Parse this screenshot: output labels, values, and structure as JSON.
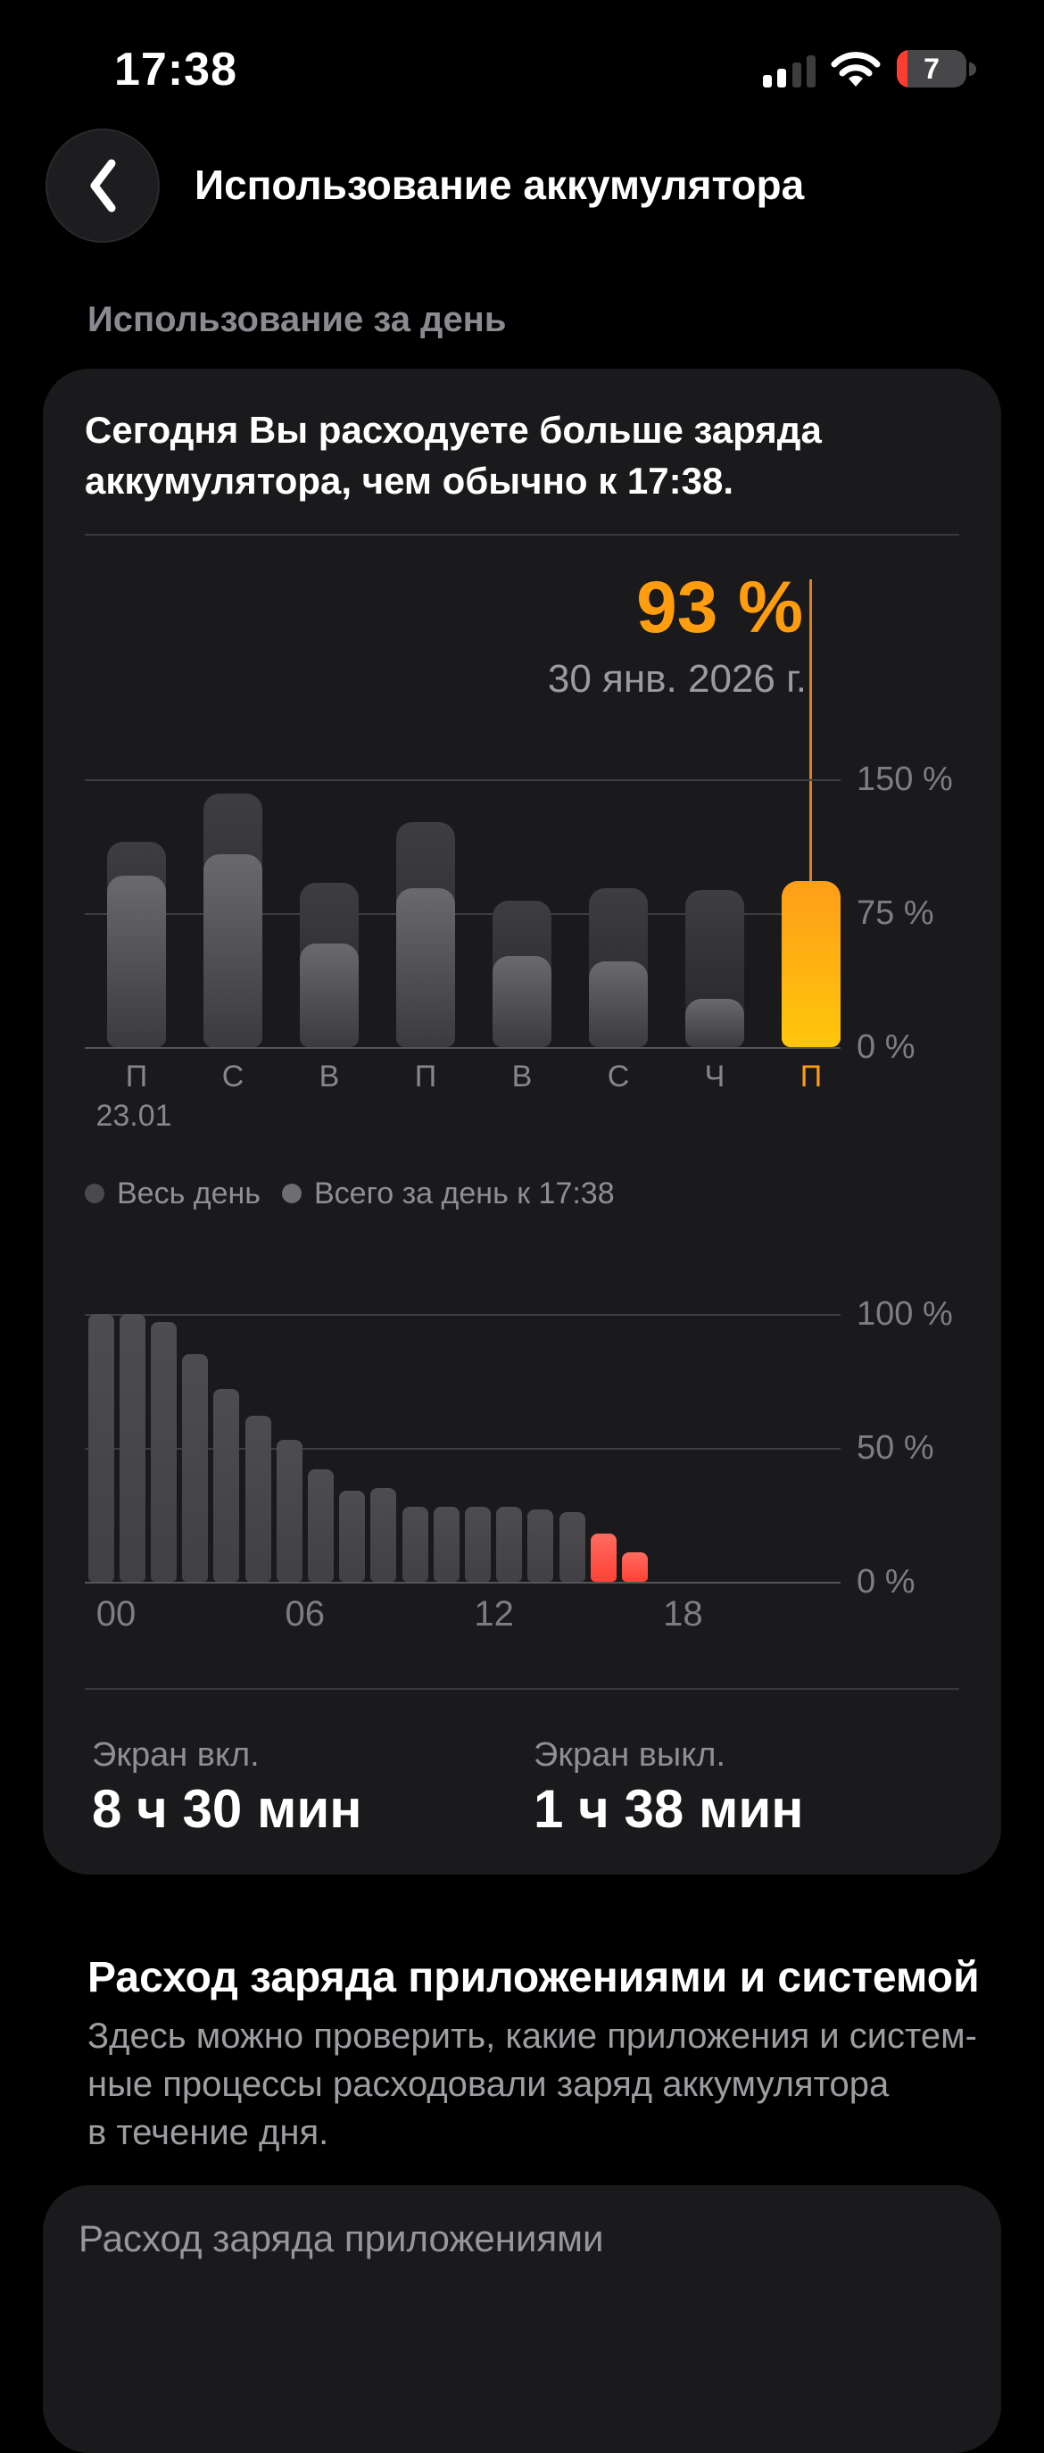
{
  "status_bar": {
    "time": "17:38",
    "battery_level": "7",
    "battery_color": "#fd3d31",
    "signal_bars_active": 2,
    "signal_bars_total": 4
  },
  "header": {
    "title": "Использование аккумулятора"
  },
  "daily_section": {
    "label": "Использование за день"
  },
  "usage_card": {
    "headline": "Сегодня Вы расходуете больше заряда\nаккумулятора, чем обычно к 17:38.",
    "screen_on_label": "Экран вкл.",
    "screen_on_value": "8 ч 30 мин",
    "screen_off_label": "Экран выкл.",
    "screen_off_value": "1 ч 38 мин"
  },
  "chart_data": [
    {
      "type": "bar",
      "name": "weekly-battery-usage",
      "categories": [
        "П",
        "С",
        "В",
        "П",
        "В",
        "С",
        "Ч",
        "П"
      ],
      "first_category_date": "23.01",
      "series": [
        {
          "name": "Весь день",
          "color": "#4a4a4d",
          "values": [
            115,
            142,
            92,
            126,
            82,
            89,
            88,
            null
          ]
        },
        {
          "name": "Всего за день к 17:38",
          "color": "#6d6d72",
          "values": [
            96,
            108,
            58,
            89,
            51,
            48,
            27,
            93
          ]
        }
      ],
      "highlight": {
        "index": 7,
        "value_label": "93 %",
        "date_label": "30 янв. 2026 г.",
        "color": "#ff9d0f"
      },
      "yticks": [
        {
          "label": "150 %",
          "value": 150
        },
        {
          "label": "75 %",
          "value": 75
        },
        {
          "label": "0 %",
          "value": 0
        }
      ],
      "ylim": [
        0,
        160
      ],
      "grid": true,
      "legend_position": "bottom"
    },
    {
      "type": "bar",
      "name": "hourly-battery-level",
      "x": [
        0,
        1,
        2,
        3,
        4,
        5,
        6,
        7,
        8,
        9,
        10,
        11,
        12,
        13,
        14,
        15,
        16,
        17
      ],
      "values": [
        100,
        100,
        97,
        85,
        72,
        62,
        53,
        42,
        34,
        35,
        28,
        28,
        28,
        28,
        27,
        26,
        18,
        11
      ],
      "low_battery_from_index": 16,
      "bar_color": "#47474b",
      "low_color": "#ff453a",
      "xticks": [
        {
          "label": "00",
          "hour": 0
        },
        {
          "label": "06",
          "hour": 6
        },
        {
          "label": "12",
          "hour": 12
        },
        {
          "label": "18",
          "hour": 18
        }
      ],
      "yticks": [
        {
          "label": "100 %",
          "value": 100
        },
        {
          "label": "50 %",
          "value": 50
        },
        {
          "label": "0 %",
          "value": 0
        }
      ],
      "ylim": [
        0,
        100
      ],
      "grid": true
    }
  ],
  "apps_section": {
    "title": "Расход заряда приложениями и системой",
    "description": "Здесь можно проверить, какие приложения и систем-\nные процессы расходовали заряд аккумулятора\nв течение дня."
  },
  "apps_card": {
    "title": "Расход заряда приложениями"
  },
  "colors": {
    "accent_orange": "#ff9d0f",
    "low_battery_red": "#ff453a",
    "card_background": "#1a1a1c",
    "page_background": "#000000"
  }
}
